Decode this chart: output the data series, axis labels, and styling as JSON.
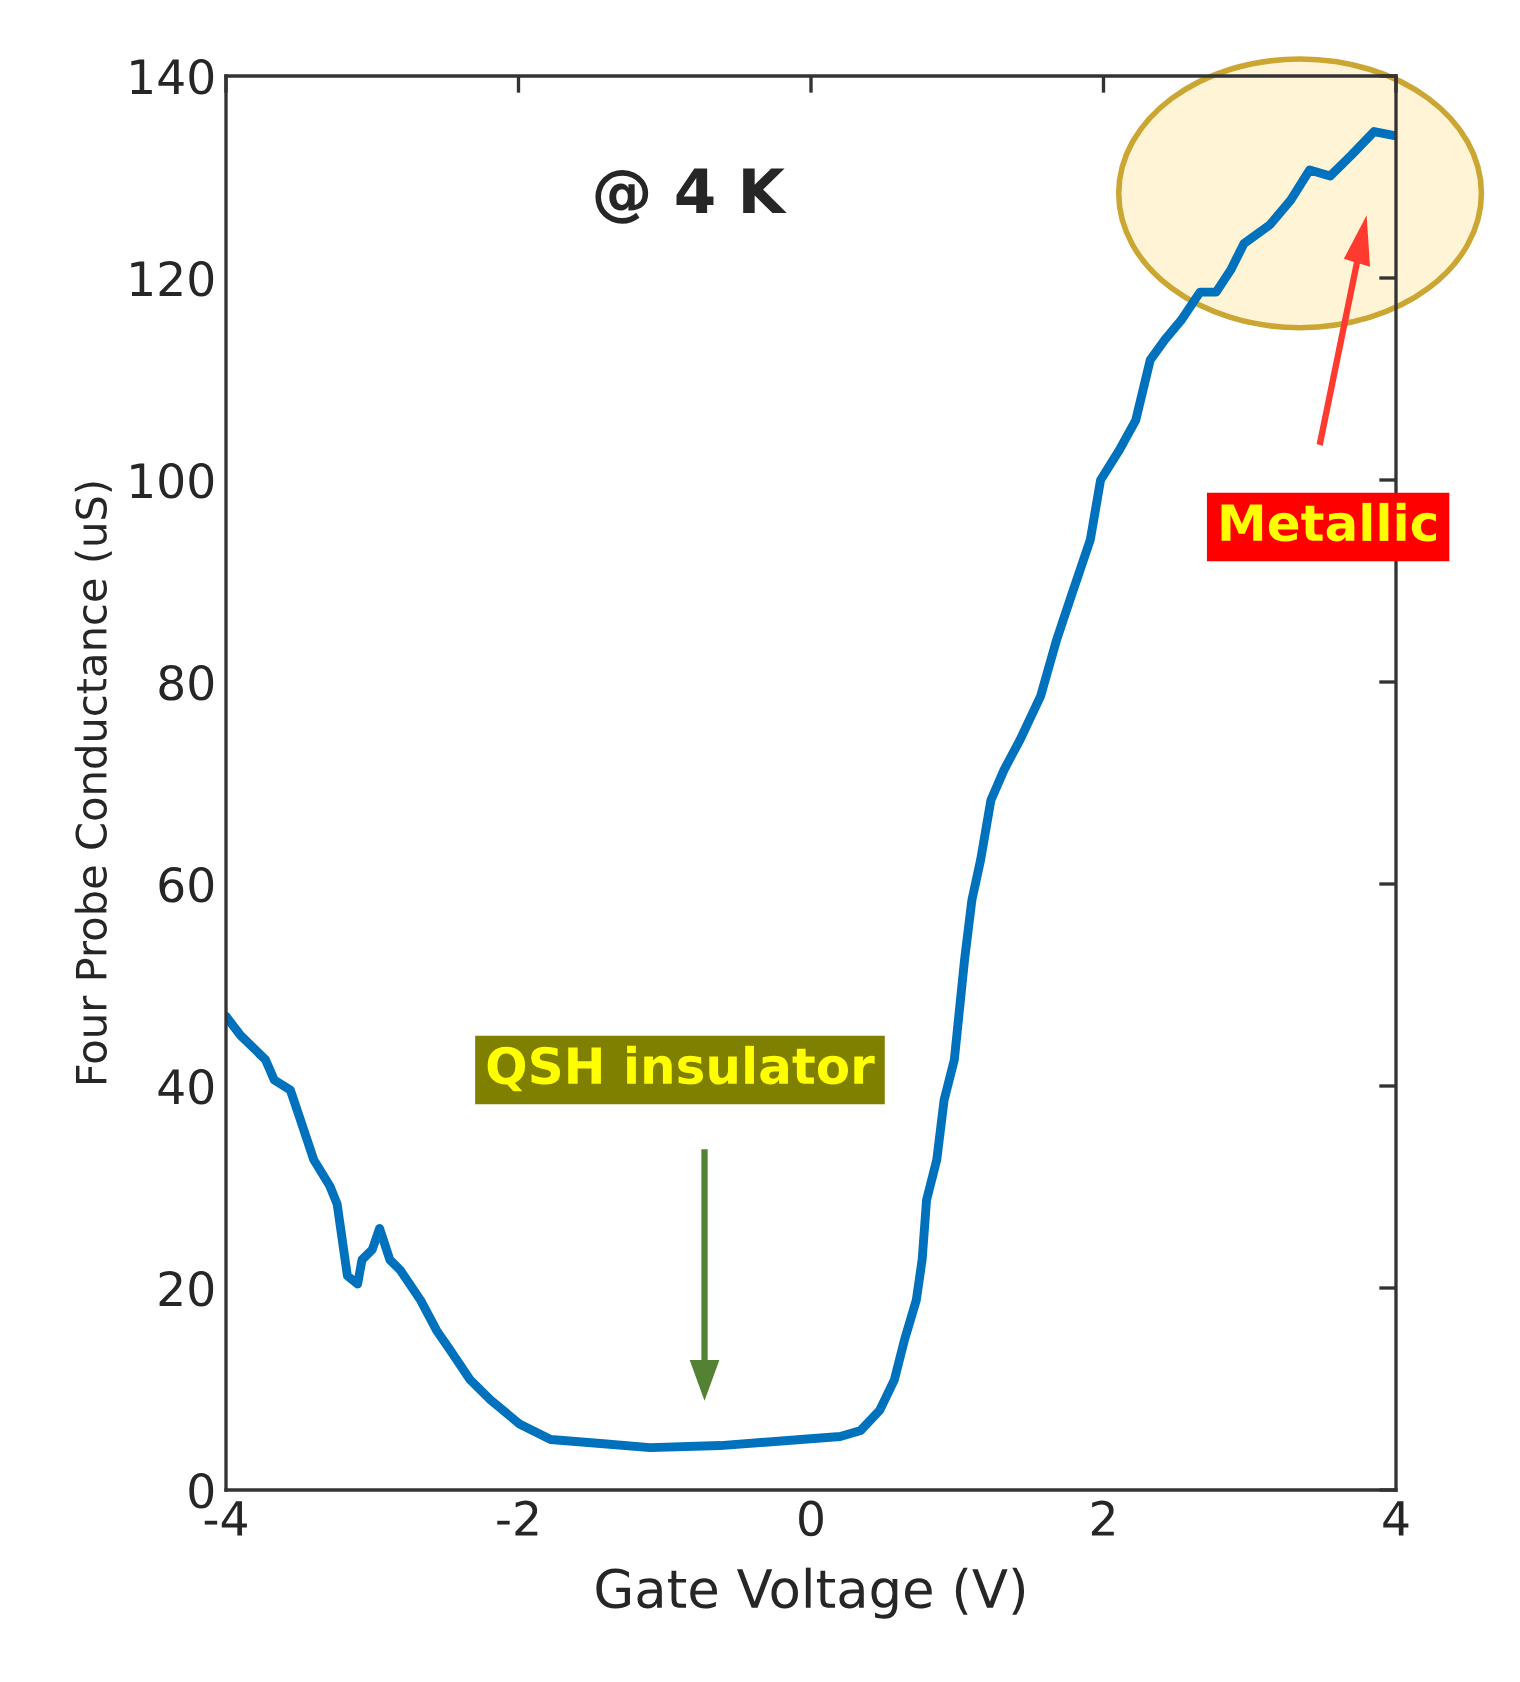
{
  "chart_data": {
    "type": "line",
    "xlabel": "Gate Voltage (V)",
    "ylabel": "Four Probe Conductance (uS)",
    "annotations": [
      "@ 4 K",
      "QSH insulator",
      "Metallic"
    ],
    "xlim": [
      -4,
      4
    ],
    "xticks": [
      -4,
      -2,
      0,
      2,
      4
    ],
    "ylim": [
      0,
      140
    ],
    "yticks": [
      0,
      20,
      40,
      60,
      80,
      100,
      120,
      140
    ],
    "grid": false,
    "series": [
      {
        "color": "#0072bd",
        "x": [
          -4,
          -3.9,
          -3.8,
          -3.73,
          -3.67,
          -3.56,
          -3.49,
          -3.4,
          -3.29,
          -3.24,
          -3.17,
          -3.1,
          -3.07,
          -3.0,
          -2.95,
          -2.88,
          -2.81,
          -2.67,
          -2.56,
          -2.47,
          -2.33,
          -2.19,
          -1.99,
          -1.78,
          -1.44,
          -1.1,
          -0.62,
          -0.07,
          0.2,
          0.34,
          0.47,
          0.57,
          0.64,
          0.72,
          0.76,
          0.79,
          0.86,
          0.91,
          0.98,
          1.05,
          1.1,
          1.16,
          1.23,
          1.32,
          1.43,
          1.57,
          1.68,
          1.77,
          1.91,
          1.98,
          2.11,
          2.22,
          2.32,
          2.42,
          2.53,
          2.66,
          2.77,
          2.87,
          2.96,
          3.14,
          3.28,
          3.41,
          3.55,
          3.69,
          3.85,
          3.99
        ],
        "values": [
          46.9,
          45,
          43.6,
          42.6,
          40.6,
          39.6,
          36.6,
          32.7,
          30.1,
          28.3,
          21.2,
          20.4,
          22.8,
          23.8,
          25.9,
          22.8,
          21.8,
          18.8,
          15.8,
          13.9,
          10.9,
          8.9,
          6.5,
          5.0,
          4.6,
          4.2,
          4.4,
          5.0,
          5.3,
          5.9,
          7.9,
          10.9,
          14.9,
          18.8,
          22.8,
          28.7,
          32.7,
          38.6,
          42.6,
          52.5,
          58.4,
          62.4,
          68.3,
          71.3,
          74.3,
          78.6,
          84.2,
          88.1,
          94.1,
          100,
          103,
          105.9,
          111.9,
          113.9,
          115.8,
          118.6,
          118.6,
          120.8,
          123.4,
          125.3,
          127.7,
          130.7,
          130.1,
          132.1,
          134.5,
          134.1
        ]
      }
    ]
  }
}
